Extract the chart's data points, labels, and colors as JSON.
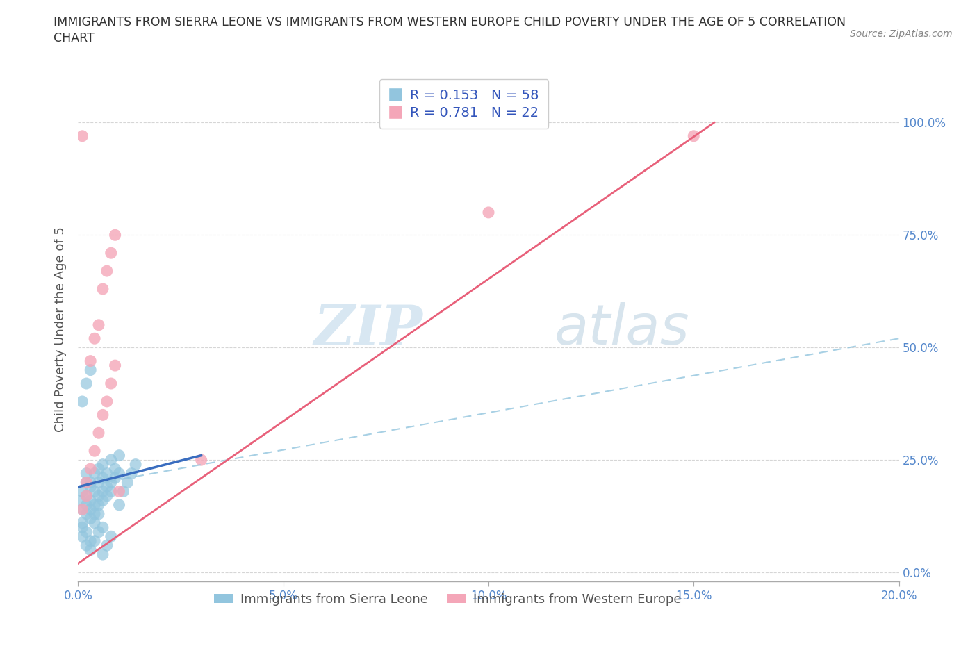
{
  "title_line1": "IMMIGRANTS FROM SIERRA LEONE VS IMMIGRANTS FROM WESTERN EUROPE CHILD POVERTY UNDER THE AGE OF 5 CORRELATION",
  "title_line2": "CHART",
  "source_text": "Source: ZipAtlas.com",
  "ylabel": "Child Poverty Under the Age of 5",
  "xlim": [
    0.0,
    0.2
  ],
  "ylim": [
    -0.02,
    1.1
  ],
  "yticks": [
    0.0,
    0.25,
    0.5,
    0.75,
    1.0
  ],
  "ytick_labels": [
    "0.0%",
    "25.0%",
    "50.0%",
    "75.0%",
    "100.0%"
  ],
  "xticks": [
    0.0,
    0.05,
    0.1,
    0.15,
    0.2
  ],
  "xtick_labels": [
    "0.0%",
    "5.0%",
    "10.0%",
    "15.0%",
    "20.0%"
  ],
  "watermark_zip": "ZIP",
  "watermark_atlas": "atlas",
  "sierra_leone_color": "#92c5de",
  "western_europe_color": "#f4a6b8",
  "sierra_leone_R": "0.153",
  "sierra_leone_N": "58",
  "western_europe_R": "0.781",
  "western_europe_N": "22",
  "legend_label_1": "Immigrants from Sierra Leone",
  "legend_label_2": "Immigrants from Western Europe",
  "sl_trend_color": "#3a6dbf",
  "we_trend_color": "#e8607a",
  "dashed_trend_color": "#92c5de",
  "background_color": "#ffffff",
  "grid_color": "#cccccc",
  "title_color": "#333333",
  "axis_label_color": "#555555",
  "tick_color": "#5588cc",
  "legend_R_color": "#222222",
  "legend_N_color": "#3355bb",
  "sierra_leone_points": [
    [
      0.0005,
      0.16
    ],
    [
      0.001,
      0.18
    ],
    [
      0.001,
      0.14
    ],
    [
      0.001,
      0.1
    ],
    [
      0.002,
      0.2
    ],
    [
      0.002,
      0.17
    ],
    [
      0.002,
      0.15
    ],
    [
      0.002,
      0.13
    ],
    [
      0.002,
      0.22
    ],
    [
      0.003,
      0.19
    ],
    [
      0.003,
      0.16
    ],
    [
      0.003,
      0.14
    ],
    [
      0.003,
      0.12
    ],
    [
      0.003,
      0.2
    ],
    [
      0.004,
      0.18
    ],
    [
      0.004,
      0.15
    ],
    [
      0.004,
      0.22
    ],
    [
      0.004,
      0.13
    ],
    [
      0.005,
      0.2
    ],
    [
      0.005,
      0.17
    ],
    [
      0.005,
      0.15
    ],
    [
      0.005,
      0.23
    ],
    [
      0.006,
      0.21
    ],
    [
      0.006,
      0.18
    ],
    [
      0.006,
      0.16
    ],
    [
      0.006,
      0.24
    ],
    [
      0.007,
      0.22
    ],
    [
      0.007,
      0.19
    ],
    [
      0.007,
      0.17
    ],
    [
      0.008,
      0.25
    ],
    [
      0.008,
      0.2
    ],
    [
      0.008,
      0.18
    ],
    [
      0.009,
      0.23
    ],
    [
      0.009,
      0.21
    ],
    [
      0.01,
      0.26
    ],
    [
      0.01,
      0.22
    ],
    [
      0.001,
      0.08
    ],
    [
      0.002,
      0.06
    ],
    [
      0.003,
      0.05
    ],
    [
      0.004,
      0.07
    ],
    [
      0.005,
      0.09
    ],
    [
      0.006,
      0.04
    ],
    [
      0.007,
      0.06
    ],
    [
      0.008,
      0.08
    ],
    [
      0.001,
      0.38
    ],
    [
      0.002,
      0.42
    ],
    [
      0.003,
      0.45
    ],
    [
      0.001,
      0.11
    ],
    [
      0.002,
      0.09
    ],
    [
      0.003,
      0.07
    ],
    [
      0.004,
      0.11
    ],
    [
      0.005,
      0.13
    ],
    [
      0.006,
      0.1
    ],
    [
      0.01,
      0.15
    ],
    [
      0.011,
      0.18
    ],
    [
      0.012,
      0.2
    ],
    [
      0.013,
      0.22
    ],
    [
      0.014,
      0.24
    ]
  ],
  "western_europe_points": [
    [
      0.001,
      0.97
    ],
    [
      0.001,
      0.14
    ],
    [
      0.002,
      0.17
    ],
    [
      0.002,
      0.2
    ],
    [
      0.003,
      0.23
    ],
    [
      0.003,
      0.47
    ],
    [
      0.004,
      0.27
    ],
    [
      0.004,
      0.52
    ],
    [
      0.005,
      0.31
    ],
    [
      0.005,
      0.55
    ],
    [
      0.006,
      0.35
    ],
    [
      0.006,
      0.63
    ],
    [
      0.007,
      0.38
    ],
    [
      0.007,
      0.67
    ],
    [
      0.008,
      0.42
    ],
    [
      0.008,
      0.71
    ],
    [
      0.009,
      0.46
    ],
    [
      0.009,
      0.75
    ],
    [
      0.01,
      0.18
    ],
    [
      0.03,
      0.25
    ],
    [
      0.15,
      0.97
    ],
    [
      0.1,
      0.8
    ]
  ]
}
